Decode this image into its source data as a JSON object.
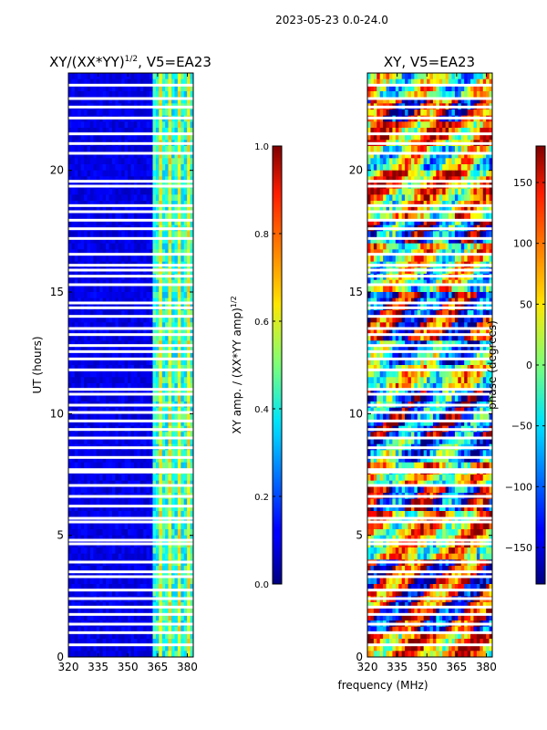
{
  "suptitle": "2023-05-23 0.0-24.0",
  "chart_data": [
    {
      "type": "heatmap",
      "title": "XY/(XX*YY)^{1/2}, V5=EA23",
      "title_main": "XY/(XX*YY)",
      "title_exp": "1/2",
      "title_tail": ", V5=EA23",
      "xlabel": "frequency (MHz)",
      "ylabel": "UT (hours)",
      "xlim": [
        320,
        383
      ],
      "ylim": [
        0,
        24
      ],
      "xticks": [
        "320",
        "335",
        "350",
        "365",
        "380"
      ],
      "yticks": [
        "0",
        "5",
        "10",
        "15",
        "20"
      ],
      "colorbar": {
        "label": "XY amp. / (XX*YY amp)^{1/2}",
        "label_main": "XY amp. / (XX*YY amp)",
        "label_exp": "1/2",
        "range": [
          0.0,
          1.0
        ],
        "ticks": [
          "0.0",
          "0.2",
          "0.4",
          "0.6",
          "0.8",
          "1.0"
        ]
      },
      "colormap": "jet",
      "description_values": "low amplitude (~0.05-0.15) below 363 MHz, higher (~0.3-0.7) in 363-383 MHz band",
      "gap_hours": [
        0.5,
        1.0,
        1.35,
        1.75,
        2.05,
        2.4,
        2.75,
        3.3,
        3.5,
        3.9,
        4.65,
        4.8,
        5.55,
        5.7,
        6.2,
        6.6,
        7.05,
        7.6,
        7.7,
        8.2,
        8.6,
        9.0,
        9.35,
        9.7,
        10.05,
        10.35,
        10.8,
        11.0,
        11.8,
        12.25,
        12.55,
        12.8,
        13.25,
        13.5,
        14.0,
        14.35,
        14.55,
        15.3,
        15.65,
        15.9,
        16.1,
        16.55,
        17.2,
        17.6,
        17.95,
        18.3,
        18.55,
        19.35,
        19.55,
        20.7,
        21.1,
        21.5,
        22.15,
        22.6,
        22.95,
        23.5
      ]
    },
    {
      "type": "heatmap",
      "title": "XY, V5=EA23",
      "xlabel": "frequency (MHz)",
      "ylabel": "",
      "xlim": [
        320,
        383
      ],
      "ylim": [
        0,
        24
      ],
      "xticks": [
        "320",
        "335",
        "350",
        "365",
        "380"
      ],
      "yticks": [
        "0",
        "5",
        "10",
        "15",
        "20"
      ],
      "colorbar": {
        "label": "phase (degrees)",
        "range": [
          -180,
          180
        ],
        "ticks": [
          "−150",
          "−100",
          "−50",
          "0",
          "50",
          "100",
          "150"
        ]
      },
      "colormap": "jet",
      "description_values": "phase varies widely across -180 to 180 degrees",
      "gap_hours": [
        0.5,
        1.0,
        1.35,
        1.75,
        2.05,
        2.4,
        2.75,
        3.3,
        3.5,
        3.9,
        4.65,
        4.8,
        5.55,
        5.7,
        6.2,
        6.6,
        7.05,
        7.6,
        7.7,
        8.2,
        8.6,
        9.0,
        9.35,
        9.7,
        10.05,
        10.35,
        10.8,
        11.0,
        11.8,
        12.25,
        12.55,
        12.8,
        13.25,
        13.5,
        14.0,
        14.35,
        14.55,
        15.3,
        15.65,
        15.9,
        16.1,
        16.55,
        17.2,
        17.6,
        17.95,
        18.3,
        18.55,
        19.35,
        19.55,
        20.7,
        21.1,
        21.5,
        22.15,
        22.6,
        22.95,
        23.5
      ]
    }
  ],
  "shared_xlabel": "frequency (MHz)"
}
